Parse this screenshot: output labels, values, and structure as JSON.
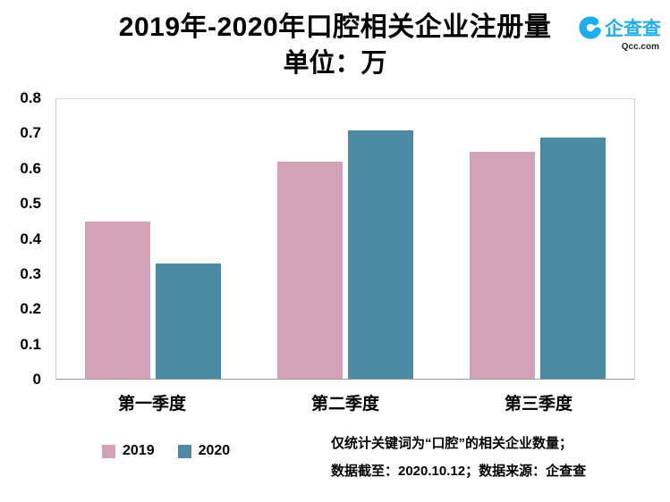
{
  "header": {
    "logo": {
      "name": "企查查",
      "domain": "Qcc.com",
      "brand_color": "#1daef0"
    }
  },
  "chart_data": {
    "type": "bar",
    "title": "2019年-2020年口腔相关企业注册量",
    "subtitle": "单位：万",
    "categories": [
      "第一季度",
      "第二季度",
      "第三季度"
    ],
    "series": [
      {
        "name": "2019",
        "color": "#d5a1b7",
        "values": [
          0.45,
          0.62,
          0.65
        ]
      },
      {
        "name": "2020",
        "color": "#4b89a4",
        "values": [
          0.33,
          0.71,
          0.69
        ]
      }
    ],
    "ylim": [
      0,
      0.8
    ],
    "yticks": [
      "0",
      "0.1",
      "0.2",
      "0.3",
      "0.4",
      "0.5",
      "0.6",
      "0.7",
      "0.8"
    ],
    "grid": false,
    "legend_position": "bottom-left"
  },
  "footnotes": {
    "line1": "仅统计关键词为“口腔”的相关企业数量；",
    "line2": "数据截至：2020.10.12；数据来源：企查查"
  }
}
